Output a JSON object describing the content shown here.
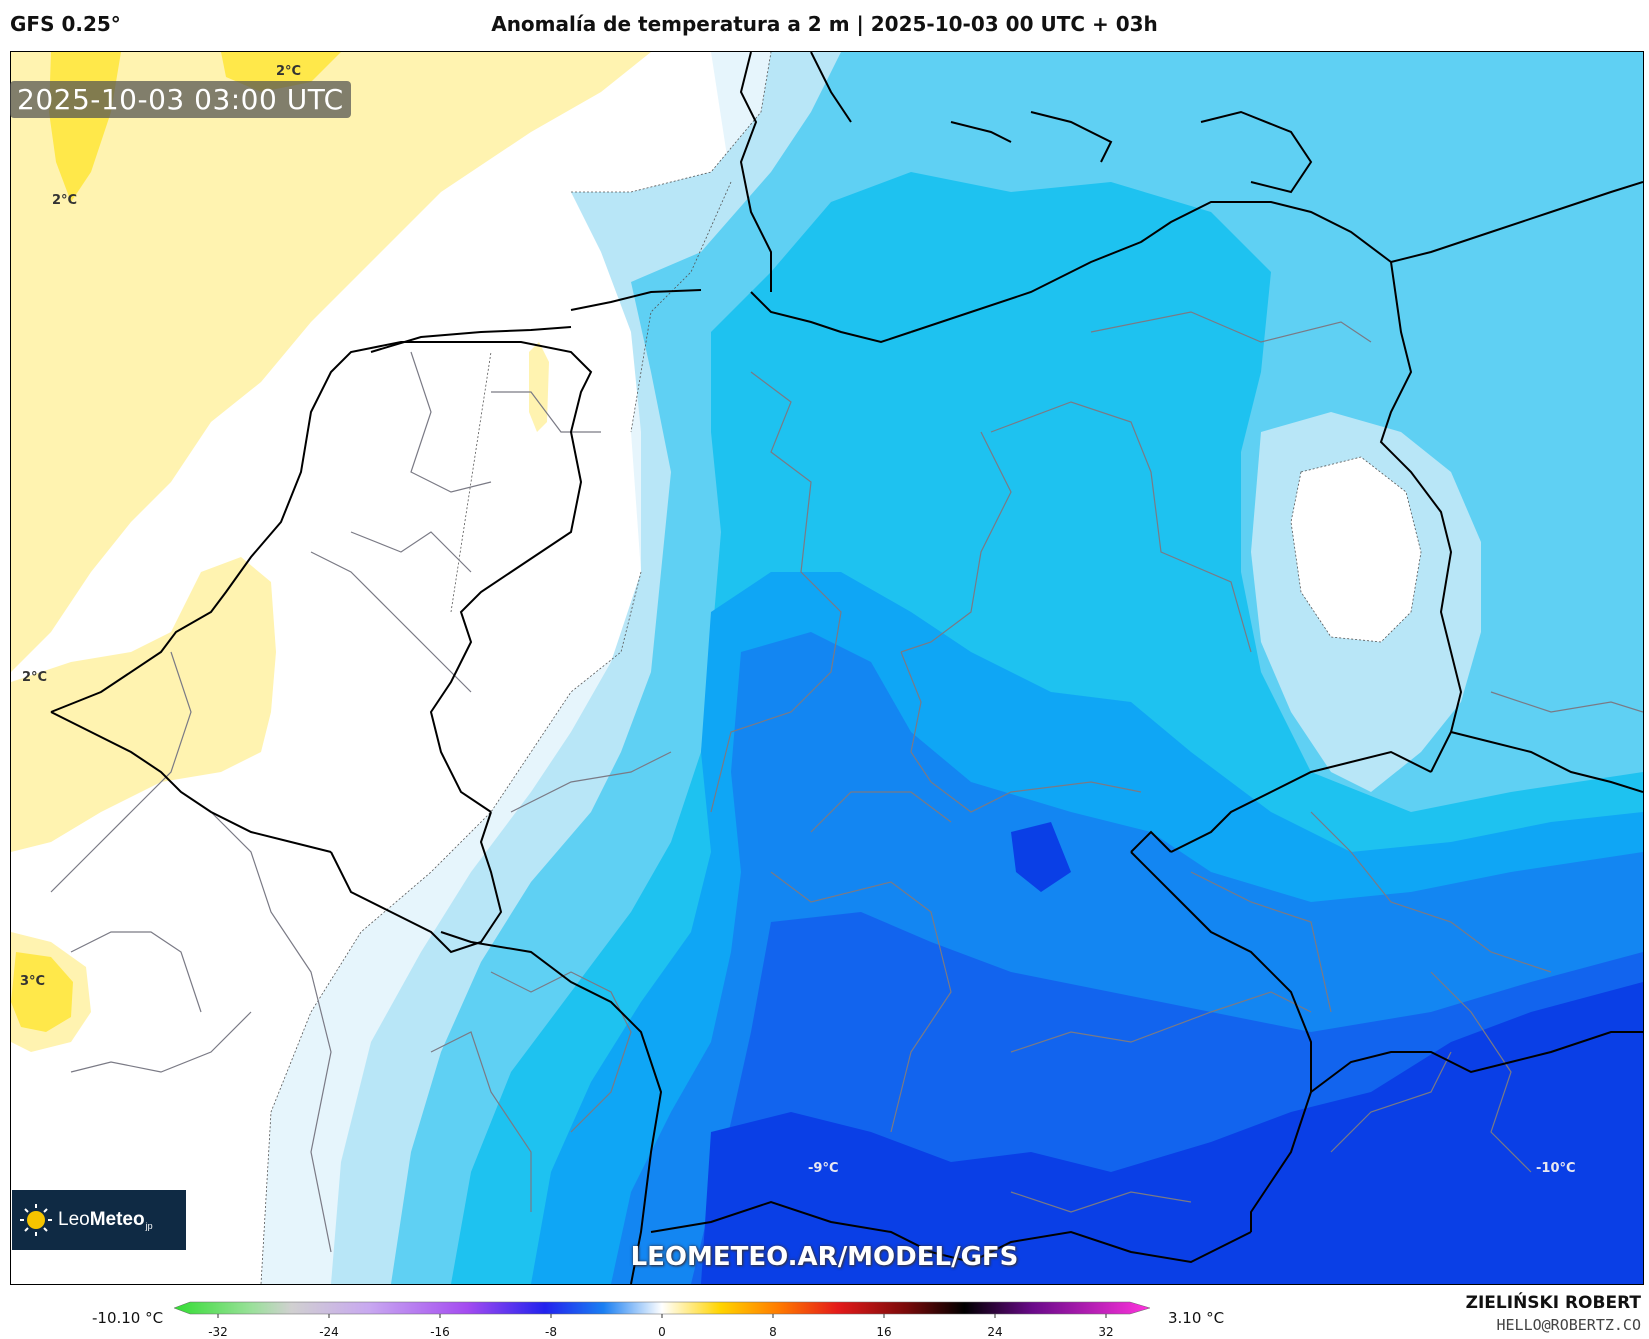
{
  "header": {
    "model": "GFS 0.25°",
    "title": "Anomalía de temperatura a 2 m | 2025-10-03 00 UTC + 03h"
  },
  "map": {
    "timestamp": "2025-10-03 03:00 UTC",
    "watermark": "LEOMETEO.AR/MODEL/GFS",
    "logo": {
      "name": "LeoMeteo",
      "prefix": "Leo",
      "bold": "Meteo",
      "suffix": "jp"
    },
    "contour_labels": [
      "2°C",
      "2°C",
      "2°C",
      "3°C",
      "-9°C",
      "-10°C"
    ],
    "colors": {
      "warm_yellow": "#fff3b0",
      "yellow": "#ffe84a",
      "white": "#ffffff",
      "pale_blue": "#e6f5fc",
      "light_blue": "#b8e6f7",
      "sky_blue": "#5fd0f3",
      "cyan": "#1ec2f0",
      "bright_blue": "#0fa6f5",
      "mid_blue": "#1386f2",
      "deep_blue": "#1264ee",
      "royal_blue": "#0a3fe6"
    }
  },
  "colorbar": {
    "min_label": "-10.10 °C",
    "max_label": "3.10 °C",
    "ticks": [
      "-32",
      "-24",
      "-16",
      "-8",
      "0",
      "8",
      "16",
      "24",
      "32"
    ]
  },
  "credits": {
    "name": "ZIELIŃSKI ROBERT",
    "email": "HELLO@ROBERTZ.CO"
  }
}
